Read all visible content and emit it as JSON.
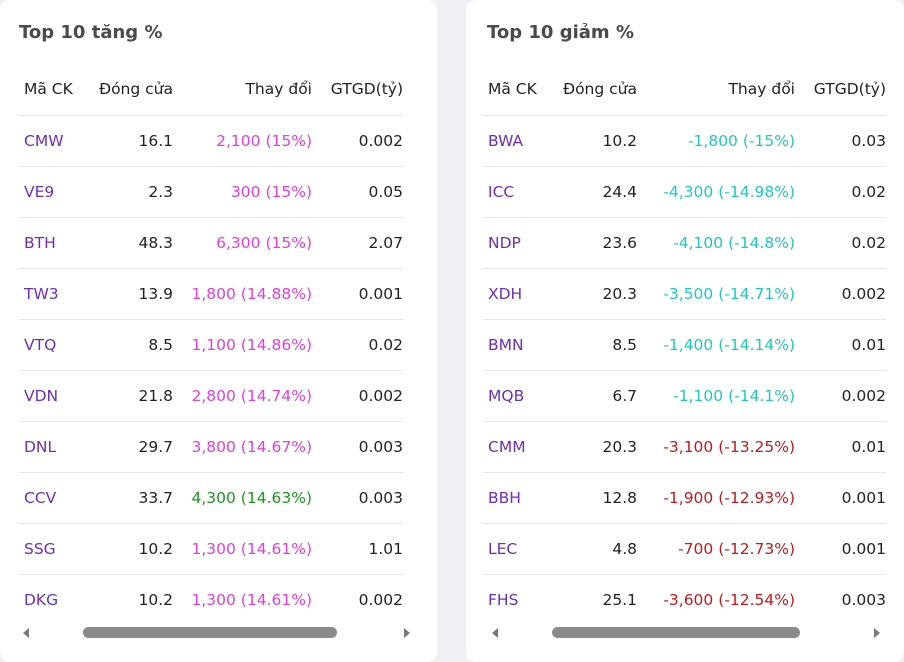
{
  "colors": {
    "code": "#6f2db8",
    "gain_ceiling": "#e43de0",
    "gain": "#1a9a1a",
    "loss_floor": "#1ec9c1",
    "loss": "#c41919"
  },
  "gainers": {
    "title": "Top 10 tăng %",
    "headers": [
      "Mã CK",
      "Đóng cửa",
      "Thay đổi",
      "GTGD(tỷ)"
    ],
    "rows": [
      {
        "code": "CMW",
        "close": "16.1",
        "change": "2,100 (15%)",
        "value": "0.002",
        "kind": "ceiling"
      },
      {
        "code": "VE9",
        "close": "2.3",
        "change": "300 (15%)",
        "value": "0.05",
        "kind": "ceiling"
      },
      {
        "code": "BTH",
        "close": "48.3",
        "change": "6,300 (15%)",
        "value": "2.07",
        "kind": "ceiling"
      },
      {
        "code": "TW3",
        "close": "13.9",
        "change": "1,800 (14.88%)",
        "value": "0.001",
        "kind": "ceiling"
      },
      {
        "code": "VTQ",
        "close": "8.5",
        "change": "1,100 (14.86%)",
        "value": "0.02",
        "kind": "ceiling"
      },
      {
        "code": "VDN",
        "close": "21.8",
        "change": "2,800 (14.74%)",
        "value": "0.002",
        "kind": "ceiling"
      },
      {
        "code": "DNL",
        "close": "29.7",
        "change": "3,800 (14.67%)",
        "value": "0.003",
        "kind": "ceiling"
      },
      {
        "code": "CCV",
        "close": "33.7",
        "change": "4,300 (14.63%)",
        "value": "0.003",
        "kind": "gain"
      },
      {
        "code": "SSG",
        "close": "10.2",
        "change": "1,300 (14.61%)",
        "value": "1.01",
        "kind": "ceiling"
      },
      {
        "code": "DKG",
        "close": "10.2",
        "change": "1,300 (14.61%)",
        "value": "0.002",
        "kind": "ceiling"
      }
    ]
  },
  "losers": {
    "title": "Top 10 giảm %",
    "headers": [
      "Mã CK",
      "Đóng cửa",
      "Thay đổi",
      "GTGD(tỷ)"
    ],
    "rows": [
      {
        "code": "BWA",
        "close": "10.2",
        "change": "-1,800 (-15%)",
        "value": "0.03",
        "kind": "floor"
      },
      {
        "code": "ICC",
        "close": "24.4",
        "change": "-4,300 (-14.98%)",
        "value": "0.02",
        "kind": "floor"
      },
      {
        "code": "NDP",
        "close": "23.6",
        "change": "-4,100 (-14.8%)",
        "value": "0.02",
        "kind": "floor"
      },
      {
        "code": "XDH",
        "close": "20.3",
        "change": "-3,500 (-14.71%)",
        "value": "0.002",
        "kind": "floor"
      },
      {
        "code": "BMN",
        "close": "8.5",
        "change": "-1,400 (-14.14%)",
        "value": "0.01",
        "kind": "floor"
      },
      {
        "code": "MQB",
        "close": "6.7",
        "change": "-1,100 (-14.1%)",
        "value": "0.002",
        "kind": "floor"
      },
      {
        "code": "CMM",
        "close": "20.3",
        "change": "-3,100 (-13.25%)",
        "value": "0.01",
        "kind": "loss"
      },
      {
        "code": "BBH",
        "close": "12.8",
        "change": "-1,900 (-12.93%)",
        "value": "0.001",
        "kind": "loss"
      },
      {
        "code": "LEC",
        "close": "4.8",
        "change": "-700 (-12.73%)",
        "value": "0.001",
        "kind": "loss"
      },
      {
        "code": "FHS",
        "close": "25.1",
        "change": "-3,600 (-12.54%)",
        "value": "0.003",
        "kind": "loss"
      }
    ]
  }
}
